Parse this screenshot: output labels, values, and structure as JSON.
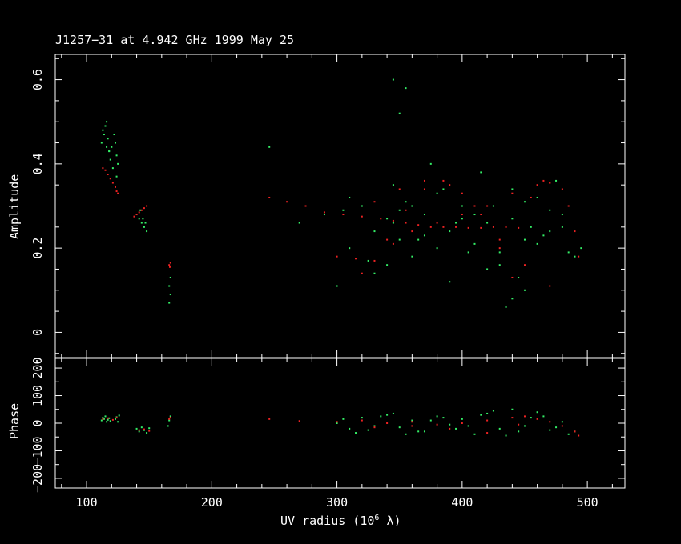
{
  "chart_data": [
    {
      "type": "scatter",
      "panel": "amplitude",
      "title": "J1257−31 at 4.942 GHz 1999 May 25",
      "ylabel": "Amplitude",
      "xlim": [
        75,
        530
      ],
      "ylim": [
        -0.06,
        0.66
      ],
      "xticks": [
        100,
        200,
        300,
        400,
        500
      ],
      "yticks": [
        0,
        0.2,
        0.4,
        0.6
      ],
      "ytick_labels": [
        "0",
        "0.2",
        "0.4",
        "0.6"
      ],
      "series": [
        {
          "color": "#33ee66",
          "x": [
            112,
            114,
            115,
            116,
            117,
            118,
            119,
            120,
            122,
            123,
            124,
            125,
            113,
            116,
            118,
            121,
            124,
            140,
            142,
            144,
            146,
            148,
            143,
            145,
            147,
            166,
            167,
            166,
            167,
            246,
            270,
            290,
            300,
            310,
            320,
            330,
            340,
            345,
            350,
            355,
            360,
            370,
            380,
            390,
            400,
            410,
            420,
            430,
            440,
            450,
            460,
            470,
            480,
            490,
            310,
            330,
            350,
            370,
            390,
            410,
            430,
            450,
            470,
            340,
            360,
            380,
            400,
            420,
            440,
            460,
            480,
            305,
            325,
            345,
            365,
            385,
            405,
            425,
            445,
            465,
            485,
            350,
            375,
            395,
            415,
            435,
            455,
            475,
            495,
            345,
            355,
            440,
            450
          ],
          "y": [
            0.45,
            0.47,
            0.49,
            0.44,
            0.46,
            0.43,
            0.41,
            0.44,
            0.47,
            0.45,
            0.42,
            0.4,
            0.48,
            0.5,
            0.43,
            0.39,
            0.37,
            0.28,
            0.27,
            0.26,
            0.25,
            0.24,
            0.29,
            0.27,
            0.26,
            0.11,
            0.09,
            0.07,
            0.13,
            0.44,
            0.26,
            0.28,
            0.11,
            0.2,
            0.3,
            0.24,
            0.27,
            0.35,
            0.22,
            0.31,
            0.18,
            0.28,
            0.33,
            0.24,
            0.3,
            0.21,
            0.26,
            0.19,
            0.27,
            0.22,
            0.32,
            0.29,
            0.25,
            0.18,
            0.32,
            0.14,
            0.29,
            0.23,
            0.12,
            0.28,
            0.16,
            0.31,
            0.24,
            0.16,
            0.3,
            0.2,
            0.27,
            0.15,
            0.08,
            0.21,
            0.28,
            0.29,
            0.17,
            0.26,
            0.22,
            0.34,
            0.19,
            0.3,
            0.13,
            0.23,
            0.19,
            0.52,
            0.4,
            0.26,
            0.38,
            0.06,
            0.25,
            0.36,
            0.2,
            0.6,
            0.58,
            0.34,
            0.1
          ]
        },
        {
          "color": "#ee2222",
          "x": [
            113,
            115,
            117,
            119,
            121,
            123,
            124,
            125,
            138,
            140,
            142,
            144,
            146,
            148,
            166,
            166.5,
            167,
            246,
            260,
            275,
            290,
            305,
            320,
            335,
            345,
            355,
            365,
            375,
            385,
            395,
            405,
            415,
            425,
            435,
            445,
            455,
            465,
            470,
            480,
            485,
            490,
            493,
            300,
            315,
            330,
            345,
            360,
            380,
            400,
            420,
            440,
            460,
            470,
            320,
            340,
            355,
            370,
            385,
            400,
            415,
            430,
            440,
            330,
            350,
            370,
            390,
            410,
            430,
            450,
            470
          ],
          "y": [
            0.39,
            0.385,
            0.375,
            0.365,
            0.355,
            0.345,
            0.335,
            0.33,
            0.275,
            0.28,
            0.285,
            0.29,
            0.295,
            0.3,
            0.16,
            0.155,
            0.165,
            0.32,
            0.31,
            0.3,
            0.285,
            0.28,
            0.275,
            0.27,
            0.265,
            0.26,
            0.255,
            0.25,
            0.25,
            0.25,
            0.248,
            0.248,
            0.25,
            0.25,
            0.248,
            0.32,
            0.36,
            0.355,
            0.34,
            0.3,
            0.24,
            0.18,
            0.18,
            0.175,
            0.17,
            0.21,
            0.24,
            0.26,
            0.28,
            0.3,
            0.33,
            0.35,
            0.355,
            0.14,
            0.22,
            0.29,
            0.34,
            0.36,
            0.33,
            0.28,
            0.2,
            0.13,
            0.31,
            0.34,
            0.36,
            0.35,
            0.3,
            0.22,
            0.16,
            0.11
          ]
        }
      ]
    },
    {
      "type": "scatter",
      "panel": "phase",
      "xlabel": "UV radius  (10",
      "xlabel_sup": "6",
      "xlabel_tail": " λ)",
      "ylabel": "Phase",
      "xlim": [
        75,
        530
      ],
      "ylim": [
        -235,
        235
      ],
      "xticks": [
        100,
        200,
        300,
        400,
        500
      ],
      "xtick_labels": [
        "100",
        "200",
        "300",
        "400",
        "500"
      ],
      "yticks": [
        -200,
        -100,
        0,
        100,
        200
      ],
      "ytick_labels": [
        "−200",
        "−100",
        "0",
        "100",
        "200"
      ],
      "series": [
        {
          "color": "#33ee66",
          "x": [
            112,
            113,
            114,
            115,
            116,
            117,
            118,
            119,
            123,
            124,
            125,
            126,
            140,
            142,
            144,
            146,
            148,
            150,
            165,
            166,
            167,
            300,
            310,
            320,
            330,
            340,
            350,
            360,
            370,
            380,
            390,
            400,
            410,
            420,
            430,
            440,
            450,
            460,
            470,
            480,
            490,
            315,
            335,
            355,
            375,
            395,
            415,
            435,
            455,
            475,
            305,
            325,
            345,
            365,
            385,
            405,
            425,
            445,
            465,
            485
          ],
          "y": [
            10,
            20,
            15,
            25,
            5,
            12,
            18,
            8,
            15,
            22,
            5,
            28,
            -20,
            -30,
            -15,
            -25,
            -35,
            -18,
            -10,
            10,
            25,
            0,
            -20,
            20,
            -10,
            30,
            -15,
            10,
            -30,
            25,
            -5,
            15,
            -40,
            35,
            -20,
            50,
            -10,
            40,
            -25,
            5,
            -30,
            -35,
            25,
            -40,
            10,
            -20,
            30,
            -45,
            20,
            -15,
            15,
            -25,
            35,
            -30,
            20,
            -10,
            45,
            -30,
            25,
            -40
          ]
        },
        {
          "color": "#ee2222",
          "x": [
            113,
            117,
            121,
            124,
            142,
            146,
            150,
            166,
            167,
            246,
            270,
            300,
            320,
            340,
            360,
            380,
            400,
            420,
            440,
            450,
            460,
            470,
            480,
            490,
            493,
            330,
            360,
            390,
            420,
            445
          ],
          "y": [
            15,
            18,
            12,
            20,
            -25,
            -22,
            -28,
            15,
            20,
            15,
            8,
            5,
            10,
            0,
            5,
            -5,
            0,
            10,
            20,
            25,
            15,
            5,
            -10,
            -30,
            -45,
            -15,
            -10,
            -20,
            -35,
            -5
          ]
        }
      ]
    }
  ]
}
